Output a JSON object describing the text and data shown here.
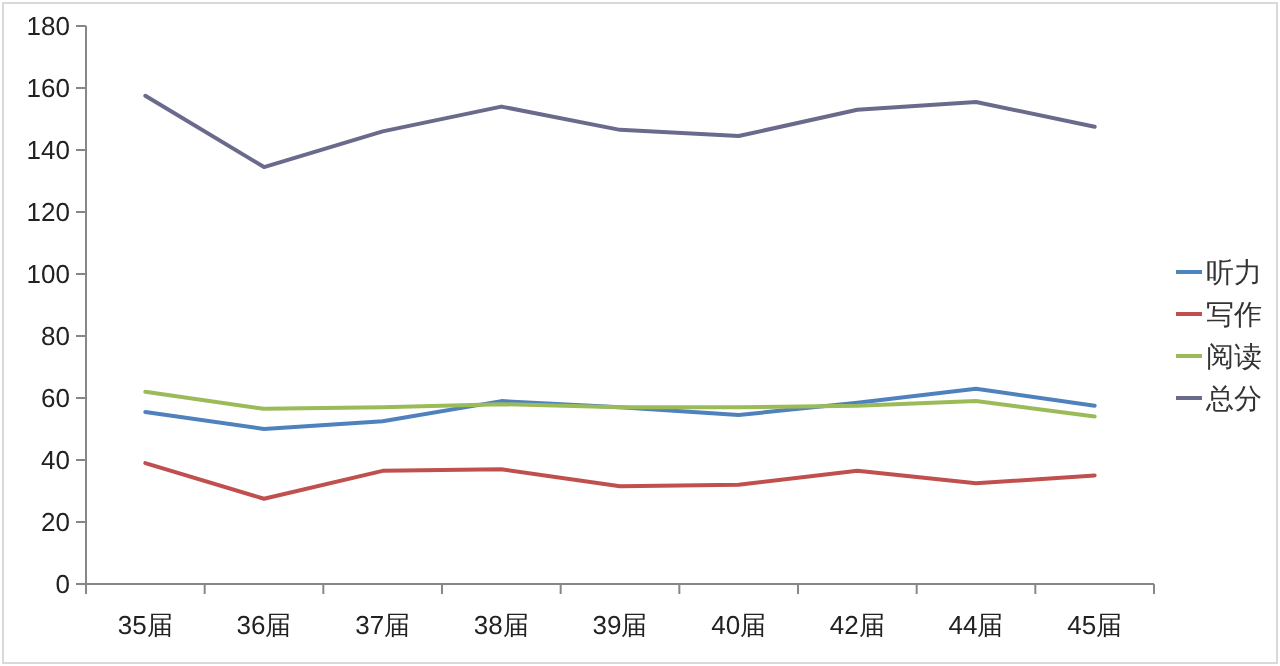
{
  "chart_data": {
    "type": "line",
    "categories": [
      "35届",
      "36届",
      "37届",
      "38届",
      "39届",
      "40届",
      "42届",
      "44届",
      "45届"
    ],
    "ylim": [
      0,
      180
    ],
    "yticks": [
      0,
      20,
      40,
      60,
      80,
      100,
      120,
      140,
      160,
      180
    ],
    "grid": false,
    "legend": "right",
    "marker": "none",
    "line_style": "solid",
    "series": [
      {
        "name": "听力",
        "color": "#4f81bd",
        "values": [
          55.5,
          50,
          52.5,
          59,
          57,
          54.5,
          58.5,
          63,
          57.5
        ]
      },
      {
        "name": "写作",
        "color": "#c0504d",
        "values": [
          39,
          27.5,
          36.5,
          37,
          31.5,
          32,
          36.5,
          32.5,
          35
        ]
      },
      {
        "name": "阅读",
        "color": "#9bbb59",
        "values": [
          62,
          56.5,
          57,
          58,
          57,
          57,
          57.5,
          59,
          54
        ]
      },
      {
        "name": "总分",
        "color": "#6a6a8c",
        "values": [
          157.5,
          134.5,
          146,
          154,
          146.5,
          144.5,
          153,
          155.5,
          147.5
        ]
      }
    ]
  }
}
